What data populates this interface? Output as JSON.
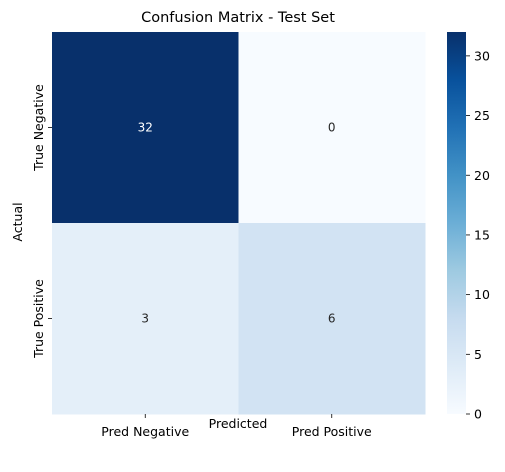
{
  "chart_data": {
    "type": "heatmap",
    "title": "Confusion Matrix - Test Set",
    "xlabel": "Predicted",
    "ylabel": "Actual",
    "x_categories": [
      "Pred Negative",
      "Pred Positive"
    ],
    "y_categories": [
      "True Negative",
      "True Positive"
    ],
    "values": [
      [
        32,
        0
      ],
      [
        3,
        6
      ]
    ],
    "colormap": "Blues",
    "vmin": 0,
    "vmax": 32,
    "colorbar_ticks": [
      0,
      5,
      10,
      15,
      20,
      25,
      30
    ],
    "annotations": true
  }
}
